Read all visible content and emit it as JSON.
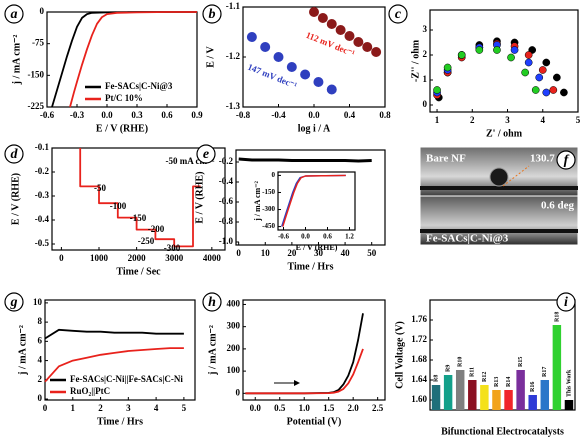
{
  "chart_data": [
    {
      "type": "line",
      "label": "a",
      "xlabel": "E / V (RHE)",
      "ylabel": "j / mA cm⁻²",
      "xlim": [
        -0.6,
        0.9
      ],
      "ylim": [
        -225,
        0
      ],
      "xticks": [
        -0.6,
        -0.3,
        {
          "value": 0,
          "label": "0.0"
        },
        0.3,
        0.6,
        0.9
      ],
      "yticks": [
        -225,
        -150,
        -75,
        0
      ],
      "legend": "lower right",
      "series": [
        {
          "name": "Fe-SACs|C-Ni@3",
          "color": "#000000",
          "x": [
            -0.55,
            -0.5,
            -0.45,
            -0.4,
            -0.35,
            -0.3,
            -0.25,
            -0.2,
            -0.15,
            0,
            0.3,
            0.6,
            0.9
          ],
          "values": [
            -225,
            -185,
            -145,
            -105,
            -68,
            -35,
            -14,
            -5,
            -2,
            -1,
            0,
            0,
            0
          ]
        },
        {
          "name": "Pt/C 10%",
          "color": "#e8221c",
          "x": [
            -0.37,
            -0.33,
            -0.3,
            -0.25,
            -0.2,
            -0.15,
            -0.1,
            -0.05,
            0,
            0.1,
            0.3,
            0.6,
            0.9
          ],
          "values": [
            -225,
            -190,
            -165,
            -125,
            -88,
            -55,
            -28,
            -12,
            -5,
            -2,
            -1,
            0,
            0
          ]
        }
      ]
    },
    {
      "type": "scatter",
      "label": "b",
      "xlabel": "log i / A",
      "ylabel": "E / V",
      "xlim": [
        -0.8,
        0.8
      ],
      "ylim": [
        -1.3,
        -1.1
      ],
      "xticks": [
        -0.8,
        -0.4,
        {
          "value": 0,
          "label": "0.0"
        },
        0.4,
        0.8
      ],
      "yticks": [
        -1.3,
        -1.2,
        -1.1
      ],
      "annotations": [
        {
          "text": "112 mV dec⁻¹",
          "color": "#e8221c"
        },
        {
          "text": "147 mV dec⁻¹",
          "color": "#2f3fbf"
        }
      ],
      "series": [
        {
          "color": "#8b1a1a",
          "x": [
            0.0,
            0.1,
            0.2,
            0.3,
            0.4,
            0.5,
            0.6,
            0.7
          ],
          "values": [
            -1.11,
            -1.122,
            -1.134,
            -1.146,
            -1.158,
            -1.17,
            -1.18,
            -1.19
          ]
        },
        {
          "color": "#2f3fbf",
          "x": [
            -0.7,
            -0.55,
            -0.4,
            -0.25,
            -0.1,
            0.05,
            0.2
          ],
          "values": [
            -1.16,
            -1.18,
            -1.2,
            -1.22,
            -1.235,
            -1.25,
            -1.265
          ]
        }
      ]
    },
    {
      "type": "scatter",
      "label": "c",
      "xlabel": "Z' / ohm",
      "ylabel": "-Z'' / ohm",
      "xlim": [
        0.8,
        5.0
      ],
      "ylim": [
        -0.28,
        3.8
      ],
      "xticks": [
        1,
        2,
        3,
        4,
        5
      ],
      "yticks": [
        0,
        1,
        2,
        3
      ],
      "series": [
        {
          "color": "#000000",
          "x": [
            1.05,
            1.3,
            1.7,
            2.2,
            2.7,
            3.2,
            3.7,
            4.1,
            4.4,
            4.6
          ],
          "values": [
            0.3,
            1.3,
            2.0,
            2.4,
            2.55,
            2.5,
            2.2,
            1.7,
            1.1,
            0.5
          ]
        },
        {
          "color": "#e8221c",
          "x": [
            1.0,
            1.3,
            1.7,
            2.2,
            2.7,
            3.2,
            3.6,
            4.0,
            4.3
          ],
          "values": [
            0.4,
            1.3,
            1.9,
            2.3,
            2.45,
            2.35,
            2.0,
            1.4,
            0.6
          ]
        },
        {
          "color": "#1f3fff",
          "x": [
            1.0,
            1.3,
            1.7,
            2.2,
            2.7,
            3.2,
            3.6,
            3.9,
            4.1
          ],
          "values": [
            0.5,
            1.4,
            2.0,
            2.3,
            2.4,
            2.2,
            1.7,
            1.1,
            0.5
          ]
        },
        {
          "color": "#22cc22",
          "x": [
            1.0,
            1.3,
            1.7,
            2.2,
            2.7,
            3.1,
            3.5,
            3.8
          ],
          "values": [
            0.6,
            1.5,
            2.0,
            2.2,
            2.2,
            1.9,
            1.3,
            0.6
          ]
        }
      ]
    },
    {
      "type": "line",
      "label": "d",
      "xlabel": "Time / Sec",
      "ylabel": "E / V (RHE)",
      "xlim": [
        -250,
        4350
      ],
      "ylim": [
        -0.525,
        -0.1
      ],
      "xticks": [
        0,
        1000,
        2000,
        3000,
        4000
      ],
      "yticks": [
        -0.5,
        -0.4,
        -0.3,
        -0.2,
        -0.1
      ],
      "annotations": [
        {
          "text": "-50",
          "color": "#000000"
        },
        {
          "text": "-100",
          "color": "#000000"
        },
        {
          "text": "-150",
          "color": "#000000"
        },
        {
          "text": "-200",
          "color": "#000000"
        },
        {
          "text": "-250",
          "color": "#000000"
        },
        {
          "text": "-300",
          "color": "#000000"
        },
        {
          "text": "-50 mA cm⁻²",
          "color": "#000000"
        }
      ],
      "series": [
        {
          "color": "#e8221c",
          "x": [
            500,
            500,
            1000,
            1000,
            1500,
            1500,
            2000,
            2000,
            2500,
            2500,
            3000,
            3000,
            3500,
            3500,
            3700
          ],
          "values": [
            -0.1,
            -0.26,
            -0.26,
            -0.33,
            -0.33,
            -0.39,
            -0.39,
            -0.44,
            -0.44,
            -0.48,
            -0.48,
            -0.51,
            -0.51,
            -0.26,
            -0.26
          ]
        }
      ]
    },
    {
      "type": "line",
      "label": "e",
      "xlabel": "Time / Hrs",
      "ylabel": "E / V (RHE)",
      "xlim": [
        -1,
        55
      ],
      "ylim": [
        -1.03,
        -0.08
      ],
      "xticks": [
        0,
        10,
        20,
        30,
        40,
        50
      ],
      "yticks": [
        {
          "value": -1,
          "label": "-1.0"
        },
        -0.8,
        -0.6,
        -0.4,
        -0.2
      ],
      "series": [
        {
          "color": "#000000",
          "x": [
            0,
            5,
            10,
            15,
            20,
            25,
            30,
            35,
            40,
            45,
            50
          ],
          "values": [
            -0.17,
            -0.18,
            -0.18,
            -0.18,
            -0.185,
            -0.185,
            -0.185,
            -0.185,
            -0.185,
            -0.19,
            -0.185
          ]
        }
      ],
      "inset": {
        "type": "line",
        "xlabel": "E / V (RHE)",
        "ylabel": "j / mA cm⁻²",
        "xlim": [
          -0.75,
          1.35
        ],
        "ylim": [
          -480,
          30
        ],
        "xticks": [
          -0.6,
          {
            "value": 0,
            "label": "0.0"
          },
          0.6,
          1.2
        ],
        "yticks": [
          -450,
          -300,
          -150,
          0
        ],
        "series": [
          {
            "color": "#2f3fbf",
            "x": [
              -0.65,
              -0.55,
              -0.45,
              -0.35,
              -0.25,
              -0.15,
              0,
              1.1
            ],
            "values": [
              -450,
              -350,
              -250,
              -150,
              -70,
              -20,
              -5,
              0
            ]
          },
          {
            "color": "#e8221c",
            "x": [
              -0.62,
              -0.52,
              -0.42,
              -0.32,
              -0.22,
              -0.12,
              0,
              1.1
            ],
            "values": [
              -450,
              -350,
              -250,
              -150,
              -70,
              -20,
              -5,
              0
            ]
          }
        ]
      }
    },
    {
      "type": "image",
      "label": "f",
      "top_label": "Bare NF",
      "top_angle": "130.7 deg",
      "bottom_label": "Fe-SACs|C-Ni@3",
      "bottom_angle": "0.6 deg"
    },
    {
      "type": "line",
      "label": "g",
      "xlabel": "Time / Hrs",
      "ylabel": "j / mA cm⁻²",
      "xlim": [
        0,
        5.4
      ],
      "ylim": [
        -0.1,
        10.3
      ],
      "xticks": [
        0,
        1,
        2,
        3,
        4,
        5
      ],
      "yticks": [
        0,
        2,
        4,
        6,
        8,
        10
      ],
      "legend": "lower left",
      "series": [
        {
          "name": "Fe-SACs|C-Ni||Fe-SACs|C-Ni",
          "color": "#000000",
          "x": [
            0,
            0.5,
            1,
            1.5,
            2,
            2.5,
            3,
            3.5,
            4,
            4.5,
            5
          ],
          "values": [
            6.3,
            7.2,
            7.1,
            7.0,
            7.0,
            6.9,
            6.9,
            6.9,
            6.8,
            6.8,
            6.8
          ]
        },
        {
          "name": "RuO₂||PtC",
          "color": "#e8221c",
          "x": [
            0,
            0.5,
            1,
            1.5,
            2,
            2.5,
            3,
            3.5,
            4,
            4.5,
            5
          ],
          "values": [
            1.8,
            3.4,
            4.0,
            4.3,
            4.6,
            4.8,
            5.0,
            5.1,
            5.2,
            5.3,
            5.3
          ]
        }
      ]
    },
    {
      "type": "line",
      "label": "h",
      "xlabel": "Potential (V)",
      "ylabel": "j / mA cm⁻²",
      "xlim": [
        -0.25,
        2.65
      ],
      "ylim": [
        -30,
        420
      ],
      "xticks": [
        {
          "value": 0,
          "label": "0.0"
        },
        0.5,
        {
          "value": 1,
          "label": "1.0"
        },
        1.5,
        {
          "value": 2,
          "label": "2.0"
        },
        2.5
      ],
      "yticks": [
        0,
        100,
        200,
        300,
        400
      ],
      "series": [
        {
          "color": "#000000",
          "x": [
            -0.2,
            0.5,
            1.0,
            1.5,
            1.6,
            1.7,
            1.8,
            1.9,
            2.0,
            2.1,
            2.2
          ],
          "values": [
            0,
            0,
            0,
            2,
            5,
            15,
            40,
            80,
            140,
            240,
            360
          ]
        },
        {
          "color": "#e8221c",
          "x": [
            -0.2,
            0.5,
            1.0,
            1.5,
            1.6,
            1.7,
            1.8,
            1.9,
            2.0,
            2.1,
            2.2
          ],
          "values": [
            0,
            0,
            0,
            1,
            3,
            8,
            20,
            45,
            85,
            140,
            200
          ]
        }
      ]
    },
    {
      "type": "bar",
      "label": "i",
      "xlabel": "Bifunctional Electrocatalysts",
      "ylabel": "Cell Voltage (V)",
      "ylim": [
        1.58,
        1.8
      ],
      "yticks": [
        {
          "value": 1.6,
          "label": "1.60"
        },
        1.64,
        1.68,
        1.72,
        1.76
      ],
      "categories": [
        "R8",
        "R9",
        "R10",
        "R11",
        "R12",
        "R13",
        "R14",
        "R15",
        "R16",
        "R17",
        "R18",
        "This Work"
      ],
      "values": [
        1.63,
        1.65,
        1.66,
        1.64,
        1.63,
        1.62,
        1.62,
        1.66,
        1.61,
        1.64,
        1.75,
        1.6
      ],
      "colors": [
        "#1f6f7a",
        "#13a08a",
        "#7f7f7f",
        "#8b1020",
        "#f4e11a",
        "#f2a31b",
        "#f0242a",
        "#7a2f9c",
        "#2e3bd6",
        "#2a76c9",
        "#2fd12f",
        "#000000"
      ]
    }
  ]
}
